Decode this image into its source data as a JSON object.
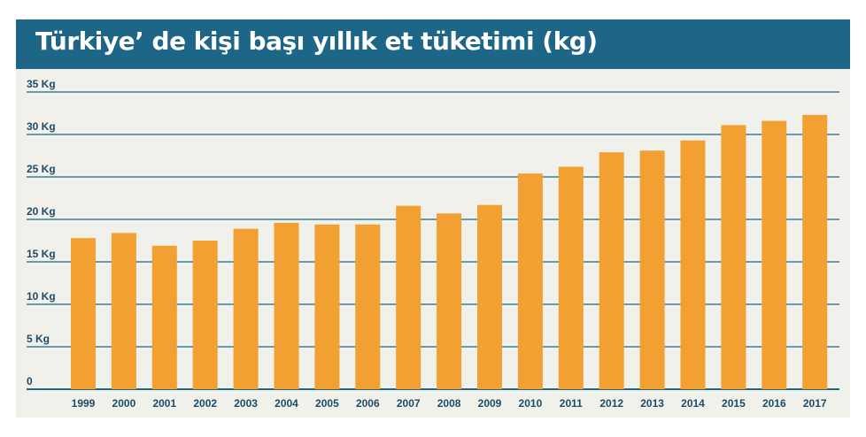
{
  "title": "Türkiye’ de kişi başı yıllık et tüketimi (kg)",
  "colors": {
    "header": "#1d6687",
    "panel": "#f1f1ec",
    "bar": "#f3a033",
    "grid": "#1d6687",
    "text": "#1d4b66"
  },
  "chart_data": {
    "type": "bar",
    "title": "Türkiye’ de kişi başı yıllık et tüketimi (kg)",
    "xlabel": "",
    "ylabel": "",
    "ylim": [
      0,
      35
    ],
    "grid": true,
    "yticks": [
      0,
      5,
      10,
      15,
      20,
      25,
      30,
      35
    ],
    "ytick_labels": [
      "0",
      "5 Kg",
      "10 Kg",
      "15 Kg",
      "20 Kg",
      "25 Kg",
      "30 Kg",
      "35 Kg"
    ],
    "categories": [
      "1999",
      "2000",
      "2001",
      "2002",
      "2003",
      "2004",
      "2005",
      "2006",
      "2007",
      "2008",
      "2009",
      "2010",
      "2011",
      "2012",
      "2013",
      "2014",
      "2015",
      "2016",
      "2017"
    ],
    "values": [
      17.8,
      18.4,
      16.9,
      17.5,
      18.9,
      19.6,
      19.4,
      19.4,
      21.6,
      20.7,
      21.7,
      25.4,
      26.2,
      27.9,
      28.1,
      29.3,
      31.1,
      31.6,
      32.3
    ]
  }
}
